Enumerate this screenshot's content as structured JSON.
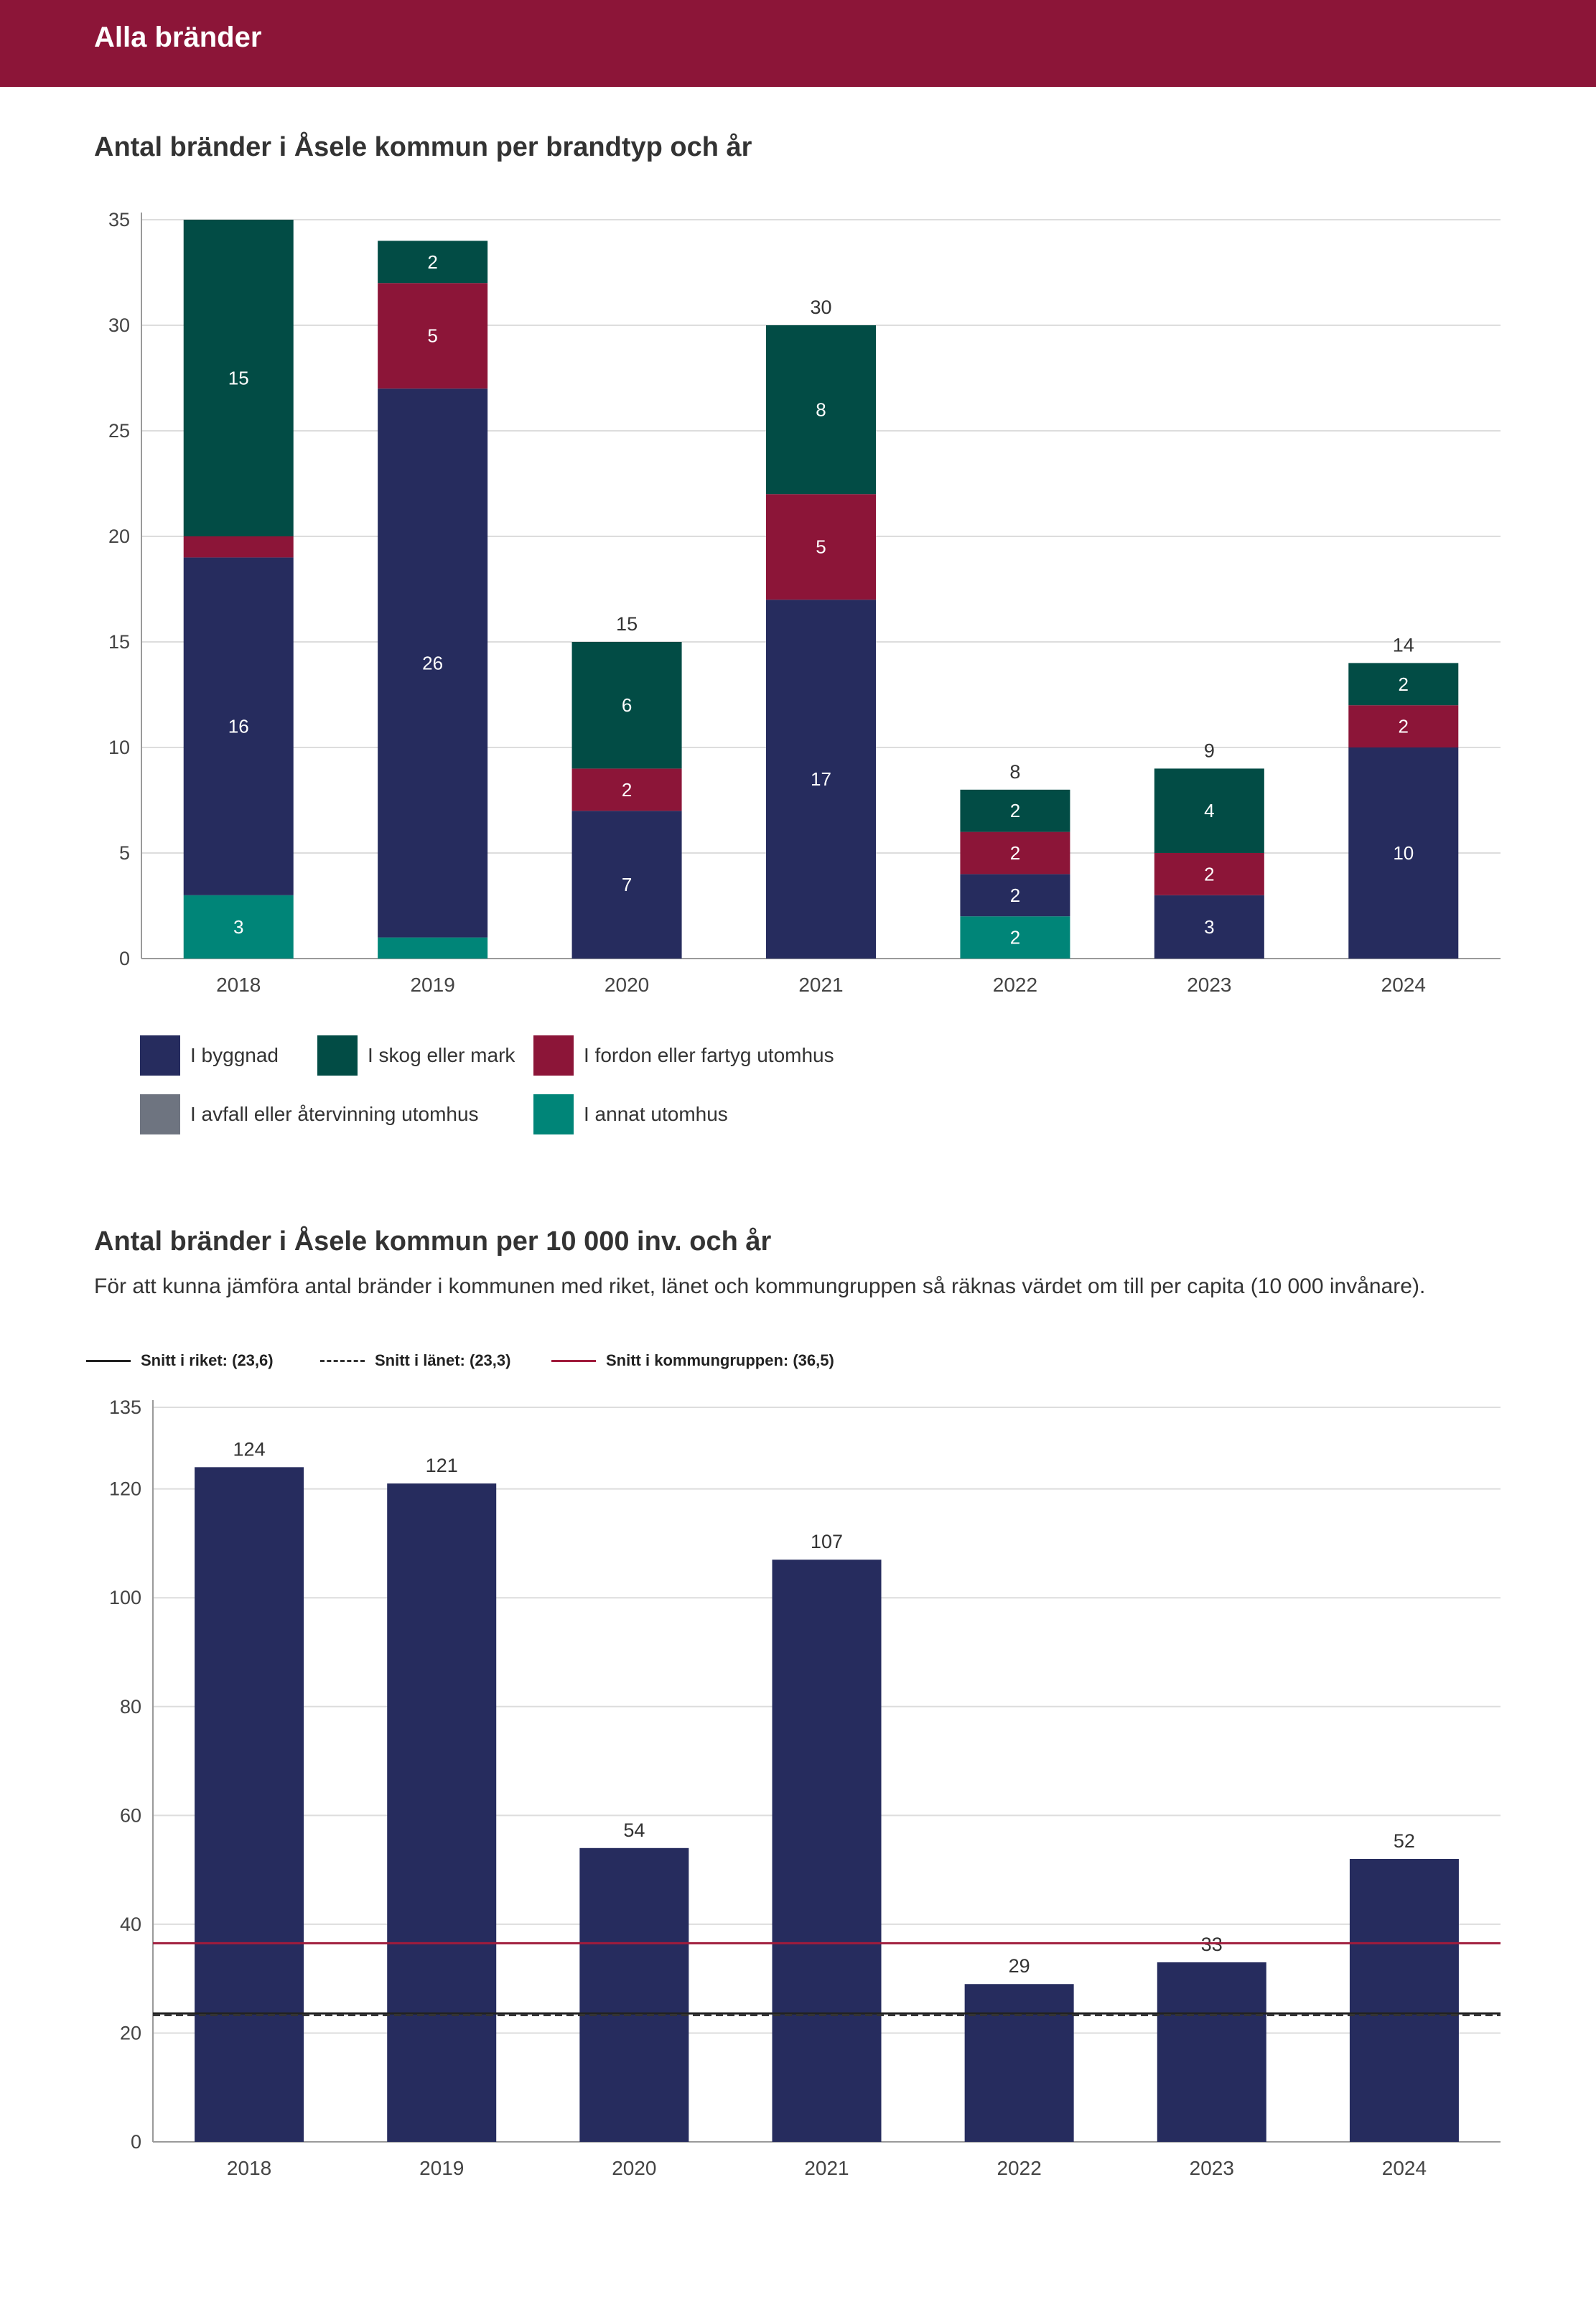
{
  "header": {
    "title": "Alla bränder"
  },
  "chart1": {
    "title": "Antal bränder i Åsele kommun per brandtyp och år"
  },
  "chart2": {
    "title": "Antal bränder i Åsele kommun per 10 000 inv. och år",
    "description": "För att kunna jämföra antal bränder i kommunen med riket, länet och kommungruppen så räknas värdet om till per capita (10 000 invånare)."
  },
  "colors": {
    "header": "#8c1538",
    "byggnad": "#262c5e",
    "skog": "#024c45",
    "fordon": "#8c1538",
    "avfall": "#6e7480",
    "annat": "#008578",
    "riket": "#222222",
    "lanet": "#333333",
    "kommungrupp": "#a01c3c"
  },
  "chart_data": [
    {
      "type": "bar",
      "stacked": true,
      "title": "Antal bränder i Åsele kommun per brandtyp och år",
      "categories": [
        "2018",
        "2019",
        "2020",
        "2021",
        "2022",
        "2023",
        "2024"
      ],
      "ylim": [
        0,
        35
      ],
      "yticks": [
        0,
        5,
        10,
        15,
        20,
        25,
        30,
        35
      ],
      "series": [
        {
          "name": "I annat utomhus",
          "key": "annat",
          "values": [
            3,
            1,
            0,
            0,
            2,
            0,
            0
          ]
        },
        {
          "name": "I avfall eller återvinning utomhus",
          "key": "avfall",
          "values": [
            0,
            0,
            0,
            0,
            0,
            0,
            0
          ]
        },
        {
          "name": "I byggnad",
          "key": "byggnad",
          "values": [
            16,
            26,
            7,
            17,
            2,
            3,
            10
          ]
        },
        {
          "name": "I fordon eller fartyg utomhus",
          "key": "fordon",
          "values": [
            1,
            5,
            2,
            5,
            2,
            2,
            2
          ]
        },
        {
          "name": "I skog eller mark",
          "key": "skog",
          "values": [
            15,
            2,
            6,
            8,
            2,
            4,
            2
          ]
        }
      ],
      "segment_labels": [
        [
          "3",
          "",
          "",
          "",
          "2",
          "",
          ""
        ],
        [
          "",
          "",
          "",
          "",
          "",
          "",
          ""
        ],
        [
          "16",
          "26",
          "7",
          "17",
          "2",
          "3",
          "10"
        ],
        [
          "",
          "5",
          "2",
          "5",
          "2",
          "2",
          "2"
        ],
        [
          "15",
          "2",
          "6",
          "8",
          "2",
          "4",
          "2"
        ]
      ],
      "total_labels": [
        "",
        "",
        "15",
        "30",
        "8",
        "9",
        "14"
      ],
      "legend": [
        {
          "name": "I byggnad",
          "key": "byggnad"
        },
        {
          "name": "I skog eller mark",
          "key": "skog"
        },
        {
          "name": "I fordon eller fartyg utomhus",
          "key": "fordon"
        },
        {
          "name": "I avfall eller återvinning utomhus",
          "key": "avfall"
        },
        {
          "name": "I annat utomhus",
          "key": "annat"
        }
      ]
    },
    {
      "type": "bar",
      "title": "Antal bränder i Åsele kommun per 10 000 inv. och år",
      "categories": [
        "2018",
        "2019",
        "2020",
        "2021",
        "2022",
        "2023",
        "2024"
      ],
      "values": [
        124,
        121,
        54,
        107,
        29,
        33,
        52
      ],
      "ylim": [
        0,
        135
      ],
      "yticks": [
        0,
        20,
        40,
        60,
        80,
        100,
        120,
        135
      ],
      "reference_lines": [
        {
          "name": "Snitt i riket: (23,6)",
          "value": 23.6,
          "style": "solid",
          "key": "riket"
        },
        {
          "name": "Snitt i länet: (23,3)",
          "value": 23.3,
          "style": "dashed",
          "key": "lanet"
        },
        {
          "name": "Snitt i kommungruppen: (36,5)",
          "value": 36.5,
          "style": "solid",
          "key": "kommungrupp"
        }
      ]
    }
  ]
}
